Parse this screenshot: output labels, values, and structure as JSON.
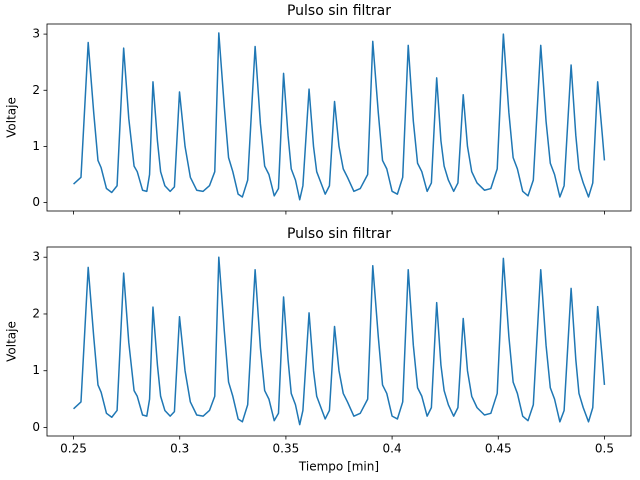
{
  "chart_data": [
    {
      "type": "line",
      "title": "Pulso sin filtrar",
      "ylabel": "Voltaje",
      "xlim": [
        0.2375,
        0.5125
      ],
      "ylim": [
        -0.15,
        3.18
      ],
      "yticks": [
        0,
        1,
        2,
        3
      ],
      "xticks": [
        0.25,
        0.3,
        0.35,
        0.4,
        0.45,
        0.5
      ],
      "series": [
        {
          "color": "#1f77b4",
          "x": [
            0.25,
            0.2535,
            0.2569,
            0.2595,
            0.2615,
            0.263,
            0.2655,
            0.268,
            0.2705,
            0.2736,
            0.276,
            0.2785,
            0.28,
            0.2825,
            0.2845,
            0.2858,
            0.2874,
            0.2895,
            0.291,
            0.293,
            0.2955,
            0.2975,
            0.2999,
            0.3025,
            0.305,
            0.308,
            0.311,
            0.314,
            0.3165,
            0.3184,
            0.321,
            0.323,
            0.325,
            0.3275,
            0.3295,
            0.332,
            0.3355,
            0.338,
            0.34,
            0.342,
            0.3445,
            0.3465,
            0.3489,
            0.351,
            0.3525,
            0.3545,
            0.3565,
            0.358,
            0.3609,
            0.363,
            0.3645,
            0.3665,
            0.3685,
            0.3705,
            0.3729,
            0.375,
            0.377,
            0.379,
            0.382,
            0.385,
            0.3885,
            0.3909,
            0.3935,
            0.3955,
            0.3975,
            0.4,
            0.4025,
            0.405,
            0.4076,
            0.41,
            0.412,
            0.414,
            0.4165,
            0.4185,
            0.421,
            0.423,
            0.4245,
            0.4265,
            0.429,
            0.431,
            0.4335,
            0.4355,
            0.4375,
            0.44,
            0.4435,
            0.4465,
            0.4495,
            0.4524,
            0.455,
            0.457,
            0.459,
            0.4615,
            0.464,
            0.4665,
            0.47,
            0.4725,
            0.4745,
            0.4765,
            0.479,
            0.481,
            0.4843,
            0.4865,
            0.488,
            0.49,
            0.4925,
            0.4945,
            0.4968,
            0.499,
            0.5
          ],
          "values": [
            0.33,
            0.45,
            2.85,
            1.6,
            0.75,
            0.62,
            0.25,
            0.18,
            0.3,
            2.75,
            1.5,
            0.65,
            0.55,
            0.22,
            0.2,
            0.5,
            2.15,
            1.1,
            0.55,
            0.3,
            0.2,
            0.28,
            1.97,
            1.0,
            0.45,
            0.22,
            0.2,
            0.3,
            0.55,
            3.02,
            1.7,
            0.8,
            0.55,
            0.15,
            0.1,
            0.4,
            2.78,
            1.4,
            0.65,
            0.5,
            0.12,
            0.25,
            2.3,
            1.2,
            0.6,
            0.4,
            0.05,
            0.3,
            2.02,
            1.0,
            0.55,
            0.35,
            0.15,
            0.3,
            1.8,
            1.0,
            0.6,
            0.45,
            0.2,
            0.25,
            0.5,
            2.87,
            1.6,
            0.75,
            0.6,
            0.2,
            0.15,
            0.45,
            2.8,
            1.45,
            0.7,
            0.55,
            0.2,
            0.35,
            2.22,
            1.1,
            0.65,
            0.4,
            0.2,
            0.35,
            1.92,
            1.0,
            0.55,
            0.35,
            0.22,
            0.25,
            0.6,
            3.0,
            1.6,
            0.8,
            0.6,
            0.2,
            0.12,
            0.4,
            2.8,
            1.45,
            0.7,
            0.5,
            0.1,
            0.3,
            2.45,
            1.2,
            0.6,
            0.35,
            0.1,
            0.35,
            2.15,
            1.2,
            0.75
          ]
        }
      ]
    },
    {
      "type": "line",
      "title": "Pulso sin filtrar",
      "ylabel": "Voltaje",
      "xlabel": "Tiempo [min]",
      "xlim": [
        0.2375,
        0.5125
      ],
      "ylim": [
        -0.15,
        3.18
      ],
      "yticks": [
        0,
        1,
        2,
        3
      ],
      "xticks": [
        0.25,
        0.3,
        0.35,
        0.4,
        0.45,
        0.5
      ],
      "series": [
        {
          "color": "#1f77b4",
          "x": [
            0.25,
            0.2535,
            0.2569,
            0.2595,
            0.2615,
            0.263,
            0.2655,
            0.268,
            0.2705,
            0.2736,
            0.276,
            0.2785,
            0.28,
            0.2825,
            0.2845,
            0.2858,
            0.2874,
            0.2895,
            0.291,
            0.293,
            0.2955,
            0.2975,
            0.2999,
            0.3025,
            0.305,
            0.308,
            0.311,
            0.314,
            0.3165,
            0.3184,
            0.321,
            0.323,
            0.325,
            0.3275,
            0.3295,
            0.332,
            0.3355,
            0.338,
            0.34,
            0.342,
            0.3445,
            0.3465,
            0.3489,
            0.351,
            0.3525,
            0.3545,
            0.3565,
            0.358,
            0.3609,
            0.363,
            0.3645,
            0.3665,
            0.3685,
            0.3705,
            0.3729,
            0.375,
            0.377,
            0.379,
            0.382,
            0.385,
            0.3885,
            0.3909,
            0.3935,
            0.3955,
            0.3975,
            0.4,
            0.4025,
            0.405,
            0.4076,
            0.41,
            0.412,
            0.414,
            0.4165,
            0.4185,
            0.421,
            0.423,
            0.4245,
            0.4265,
            0.429,
            0.431,
            0.4335,
            0.4355,
            0.4375,
            0.44,
            0.4435,
            0.4465,
            0.4495,
            0.4524,
            0.455,
            0.457,
            0.459,
            0.4615,
            0.464,
            0.4665,
            0.47,
            0.4725,
            0.4745,
            0.4765,
            0.479,
            0.481,
            0.4843,
            0.4865,
            0.488,
            0.49,
            0.4925,
            0.4945,
            0.4968,
            0.499,
            0.5
          ],
          "values": [
            0.33,
            0.45,
            2.82,
            1.6,
            0.75,
            0.62,
            0.25,
            0.18,
            0.3,
            2.72,
            1.5,
            0.65,
            0.55,
            0.22,
            0.2,
            0.5,
            2.12,
            1.1,
            0.55,
            0.3,
            0.2,
            0.28,
            1.95,
            1.0,
            0.45,
            0.22,
            0.2,
            0.3,
            0.55,
            3.0,
            1.7,
            0.8,
            0.55,
            0.15,
            0.1,
            0.4,
            2.78,
            1.4,
            0.65,
            0.5,
            0.12,
            0.25,
            2.3,
            1.2,
            0.6,
            0.4,
            0.05,
            0.3,
            2.02,
            1.0,
            0.55,
            0.35,
            0.15,
            0.3,
            1.78,
            1.0,
            0.6,
            0.45,
            0.2,
            0.25,
            0.5,
            2.85,
            1.6,
            0.75,
            0.6,
            0.2,
            0.15,
            0.45,
            2.78,
            1.45,
            0.7,
            0.55,
            0.2,
            0.35,
            2.2,
            1.1,
            0.65,
            0.4,
            0.2,
            0.35,
            1.92,
            1.0,
            0.55,
            0.35,
            0.22,
            0.25,
            0.6,
            2.98,
            1.6,
            0.8,
            0.6,
            0.2,
            0.12,
            0.4,
            2.78,
            1.45,
            0.7,
            0.5,
            0.1,
            0.3,
            2.45,
            1.2,
            0.6,
            0.35,
            0.1,
            0.35,
            2.13,
            1.2,
            0.75
          ]
        }
      ]
    }
  ]
}
